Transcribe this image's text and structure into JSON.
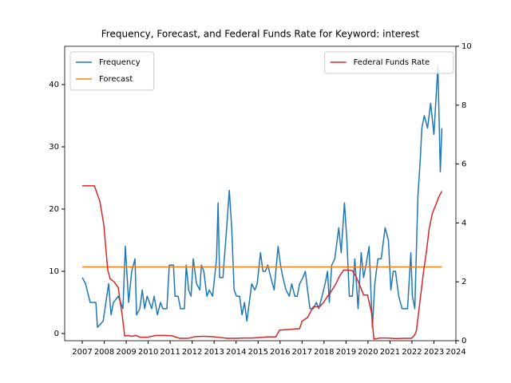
{
  "chart_data": {
    "type": "line",
    "title": "Frequency, Forecast, and Federal Funds Rate for Keyword: interest",
    "xlim": [
      2006.2,
      2024.0
    ],
    "xticks": [
      2007,
      2008,
      2009,
      2010,
      2011,
      2012,
      2013,
      2014,
      2015,
      2016,
      2017,
      2018,
      2019,
      2020,
      2021,
      2022,
      2023,
      2024
    ],
    "ylim": [
      -1.15,
      46.15
    ],
    "yticks": [
      0,
      10,
      20,
      30,
      40
    ],
    "y2lim": [
      0,
      10
    ],
    "y2ticks": [
      0,
      2,
      4,
      6,
      8,
      10
    ],
    "legend": "upper left",
    "legend2": "upper right",
    "series": [
      {
        "name": "Frequency",
        "color": "#1f77b4",
        "x": [
          2007.0,
          2007.15,
          2007.36,
          2007.62,
          2007.69,
          2007.95,
          2008.2,
          2008.31,
          2008.42,
          2008.64,
          2008.85,
          2008.96,
          2009.11,
          2009.25,
          2009.4,
          2009.47,
          2009.62,
          2009.73,
          2009.84,
          2009.95,
          2010.16,
          2010.27,
          2010.42,
          2010.56,
          2010.67,
          2010.85,
          2010.96,
          2011.15,
          2011.22,
          2011.36,
          2011.47,
          2011.65,
          2011.73,
          2011.84,
          2011.95,
          2012.05,
          2012.2,
          2012.35,
          2012.42,
          2012.53,
          2012.67,
          2012.78,
          2012.93,
          2013.11,
          2013.18,
          2013.25,
          2013.4,
          2013.55,
          2013.69,
          2013.8,
          2013.91,
          2014.02,
          2014.16,
          2014.27,
          2014.38,
          2014.49,
          2014.6,
          2014.71,
          2014.85,
          2014.96,
          2015.11,
          2015.22,
          2015.33,
          2015.44,
          2015.58,
          2015.73,
          2015.91,
          2016.02,
          2016.13,
          2016.27,
          2016.42,
          2016.53,
          2016.67,
          2016.78,
          2016.89,
          2017.04,
          2017.15,
          2017.25,
          2017.36,
          2017.51,
          2017.65,
          2017.76,
          2017.91,
          2018.05,
          2018.16,
          2018.24,
          2018.35,
          2018.49,
          2018.67,
          2018.78,
          2018.93,
          2019.04,
          2019.15,
          2019.29,
          2019.4,
          2019.55,
          2019.69,
          2019.8,
          2019.91,
          2020.05,
          2020.2,
          2020.31,
          2020.45,
          2020.6,
          2020.78,
          2020.93,
          2021.04,
          2021.15,
          2021.25,
          2021.4,
          2021.55,
          2021.69,
          2021.8,
          2021.95,
          2022.02,
          2022.13,
          2022.27,
          2022.38,
          2022.45,
          2022.56,
          2022.71,
          2022.85,
          2023.0,
          2023.18,
          2023.29,
          2023.36
        ],
        "values": [
          9,
          8,
          5,
          5,
          1,
          2,
          8,
          3,
          5,
          6,
          4,
          14,
          5,
          10,
          12,
          3,
          4,
          7,
          4,
          6,
          4,
          6,
          3,
          5,
          4,
          4,
          11,
          11,
          6,
          6,
          4,
          4,
          11,
          7,
          6,
          12,
          8,
          7,
          11,
          10,
          6,
          7,
          6,
          12,
          21,
          9,
          9,
          16,
          23,
          17,
          7,
          6,
          6,
          3,
          5,
          2,
          5,
          8,
          7,
          8,
          13,
          10,
          10,
          11,
          9,
          7,
          14,
          11,
          9,
          7,
          6,
          8,
          6,
          6,
          8,
          9,
          10,
          7,
          4,
          4,
          5,
          4,
          6,
          8,
          10,
          5,
          11,
          12,
          17,
          13,
          21,
          15,
          6,
          6,
          12,
          4,
          13,
          9,
          11,
          14,
          1,
          8,
          12,
          12,
          17,
          15,
          7,
          10,
          10,
          6,
          4,
          4,
          4,
          13,
          6,
          4,
          22,
          28,
          33,
          35,
          33,
          37,
          32,
          43,
          26,
          33
        ]
      },
      {
        "name": "Forecast",
        "color": "#ff7f0e",
        "x": [
          2007.0,
          2023.36
        ],
        "values": [
          10.7,
          10.7
        ]
      },
      {
        "name": "Federal Funds Rate",
        "color": "#d62728",
        "axis": "y2",
        "x": [
          2007.0,
          2007.55,
          2007.8,
          2007.98,
          2008.16,
          2008.27,
          2008.45,
          2008.64,
          2008.71,
          2008.82,
          2008.93,
          2009.07,
          2009.25,
          2009.44,
          2009.62,
          2009.98,
          2010.35,
          2010.71,
          2011.07,
          2011.44,
          2011.8,
          2012.16,
          2012.53,
          2012.89,
          2013.25,
          2013.62,
          2013.98,
          2014.35,
          2014.71,
          2015.07,
          2015.44,
          2015.8,
          2015.98,
          2016.35,
          2016.89,
          2017.0,
          2017.25,
          2017.51,
          2017.8,
          2017.98,
          2018.16,
          2018.35,
          2018.53,
          2018.71,
          2018.89,
          2019.07,
          2019.29,
          2019.44,
          2019.62,
          2019.8,
          2019.98,
          2020.16,
          2020.27,
          2020.53,
          2020.89,
          2021.25,
          2021.62,
          2021.98,
          2022.13,
          2022.2,
          2022.31,
          2022.42,
          2022.53,
          2022.67,
          2022.78,
          2022.93,
          2023.11,
          2023.22,
          2023.36
        ],
        "values": [
          5.26,
          5.26,
          4.74,
          3.94,
          2.4,
          2.1,
          2.0,
          1.8,
          1.4,
          0.86,
          0.16,
          0.18,
          0.15,
          0.18,
          0.12,
          0.12,
          0.18,
          0.18,
          0.17,
          0.08,
          0.08,
          0.14,
          0.15,
          0.14,
          0.11,
          0.08,
          0.08,
          0.09,
          0.09,
          0.11,
          0.13,
          0.13,
          0.36,
          0.38,
          0.41,
          0.66,
          0.79,
          1.15,
          1.16,
          1.3,
          1.51,
          1.7,
          1.92,
          2.2,
          2.4,
          2.4,
          2.38,
          2.2,
          1.9,
          1.55,
          1.55,
          0.95,
          0.05,
          0.09,
          0.09,
          0.07,
          0.08,
          0.08,
          0.2,
          0.33,
          1.0,
          1.68,
          2.36,
          3.09,
          3.79,
          4.33,
          4.66,
          4.88,
          5.08
        ]
      }
    ]
  }
}
